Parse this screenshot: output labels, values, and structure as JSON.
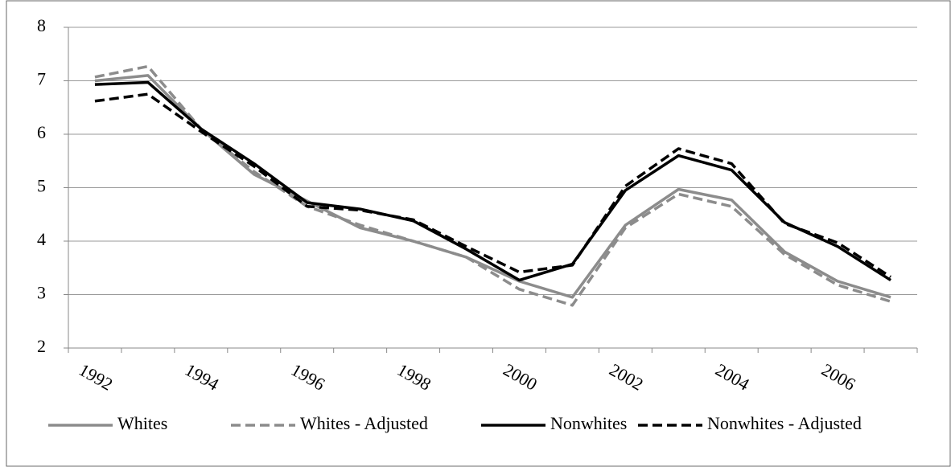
{
  "chart_data": {
    "type": "line",
    "categories": [
      "1992",
      null,
      "1994",
      null,
      "1996",
      null,
      "1998",
      null,
      "2000",
      null,
      "2002",
      null,
      "2004",
      null,
      "2006",
      null
    ],
    "series": [
      {
        "name": "Whites",
        "color": "#8c8c8c",
        "dash": "solid",
        "values": [
          7.0,
          7.1,
          6.1,
          5.25,
          4.75,
          4.25,
          4.0,
          3.7,
          3.25,
          2.95,
          4.3,
          4.97,
          4.77,
          3.8,
          3.25,
          2.95
        ]
      },
      {
        "name": "Whites - Adjusted",
        "color": "#8c8c8c",
        "dash": "dashed",
        "values": [
          7.07,
          7.27,
          6.1,
          5.3,
          4.65,
          4.3,
          4.0,
          3.7,
          3.1,
          2.8,
          4.25,
          4.88,
          4.65,
          3.75,
          3.18,
          2.87
        ]
      },
      {
        "name": "Nonwhites",
        "color": "#000000",
        "dash": "solid",
        "values": [
          6.93,
          6.97,
          6.1,
          5.45,
          4.72,
          4.6,
          4.38,
          3.85,
          3.27,
          3.57,
          4.95,
          5.6,
          5.33,
          4.35,
          3.9,
          3.27
        ]
      },
      {
        "name": "Nonwhites - Adjusted",
        "color": "#000000",
        "dash": "dashed",
        "values": [
          6.62,
          6.75,
          6.05,
          5.4,
          4.65,
          4.58,
          4.4,
          3.9,
          3.42,
          3.55,
          5.03,
          5.73,
          5.45,
          4.33,
          3.97,
          3.33
        ]
      }
    ],
    "ylim": [
      2,
      8
    ],
    "yticks": [
      2,
      3,
      4,
      5,
      6,
      7,
      8
    ],
    "grid": true,
    "legend": "bottom"
  }
}
